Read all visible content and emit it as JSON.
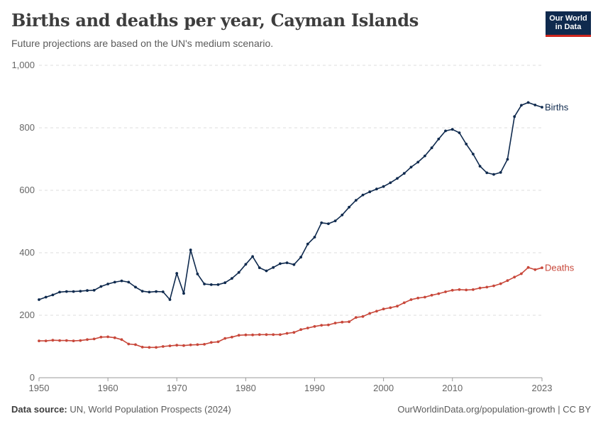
{
  "header": {
    "title": "Births and deaths per year, Cayman Islands",
    "subtitle": "Future projections are based on the UN's medium scenario."
  },
  "logo": {
    "line1": "Our World",
    "line2": "in Data"
  },
  "footer": {
    "source_label": "Data source:",
    "source_text": "UN, World Population Prospects (2024)",
    "link": "OurWorldinData.org/population-growth | CC BY"
  },
  "chart_data": {
    "type": "line",
    "title": "Births and deaths per year, Cayman Islands",
    "subtitle": "Future projections are based on the UN's medium scenario.",
    "xlabel": "",
    "ylabel": "",
    "ylim": [
      0,
      1000
    ],
    "xlim": [
      1950,
      2023
    ],
    "yticks": [
      0,
      200,
      400,
      600,
      800,
      1000
    ],
    "ytick_labels": [
      "0",
      "200",
      "400",
      "600",
      "800",
      "1,000"
    ],
    "xticks": [
      1950,
      1960,
      1970,
      1980,
      1990,
      2000,
      2010,
      2023
    ],
    "grid": "horizontal dashed",
    "legend": "inline labels at line ends (right)",
    "x": [
      1950,
      1951,
      1952,
      1953,
      1954,
      1955,
      1956,
      1957,
      1958,
      1959,
      1960,
      1961,
      1962,
      1963,
      1964,
      1965,
      1966,
      1967,
      1968,
      1969,
      1970,
      1971,
      1972,
      1973,
      1974,
      1975,
      1976,
      1977,
      1978,
      1979,
      1980,
      1981,
      1982,
      1983,
      1984,
      1985,
      1986,
      1987,
      1988,
      1989,
      1990,
      1991,
      1992,
      1993,
      1994,
      1995,
      1996,
      1997,
      1998,
      1999,
      2000,
      2001,
      2002,
      2003,
      2004,
      2005,
      2006,
      2007,
      2008,
      2009,
      2010,
      2011,
      2012,
      2013,
      2014,
      2015,
      2016,
      2017,
      2018,
      2019,
      2020,
      2021,
      2022,
      2023
    ],
    "series": [
      {
        "name": "Births",
        "color": "#0f2a4e",
        "values": [
          250,
          258,
          265,
          274,
          276,
          276,
          277,
          279,
          280,
          292,
          300,
          306,
          310,
          306,
          290,
          277,
          274,
          276,
          275,
          250,
          334,
          270,
          409,
          332,
          300,
          298,
          298,
          304,
          318,
          337,
          363,
          388,
          352,
          342,
          353,
          365,
          368,
          362,
          386,
          428,
          450,
          496,
          493,
          502,
          521,
          546,
          568,
          585,
          595,
          604,
          612,
          624,
          638,
          654,
          674,
          690,
          710,
          736,
          764,
          790,
          795,
          784,
          748,
          716,
          677,
          656,
          651,
          657,
          699,
          836,
          872,
          881,
          873,
          866
        ],
        "end_label": "Births"
      },
      {
        "name": "Deaths",
        "color": "#c8473a",
        "values": [
          118,
          118,
          120,
          119,
          119,
          118,
          119,
          122,
          124,
          130,
          131,
          128,
          122,
          108,
          106,
          98,
          97,
          97,
          100,
          102,
          104,
          103,
          105,
          106,
          107,
          113,
          115,
          126,
          130,
          136,
          137,
          137,
          138,
          138,
          138,
          138,
          142,
          145,
          154,
          159,
          164,
          168,
          169,
          175,
          178,
          179,
          193,
          196,
          206,
          213,
          220,
          224,
          229,
          240,
          250,
          255,
          258,
          264,
          269,
          275,
          280,
          282,
          281,
          282,
          287,
          290,
          294,
          301,
          311,
          322,
          333,
          353,
          346,
          352
        ],
        "end_label": "Deaths"
      }
    ]
  }
}
